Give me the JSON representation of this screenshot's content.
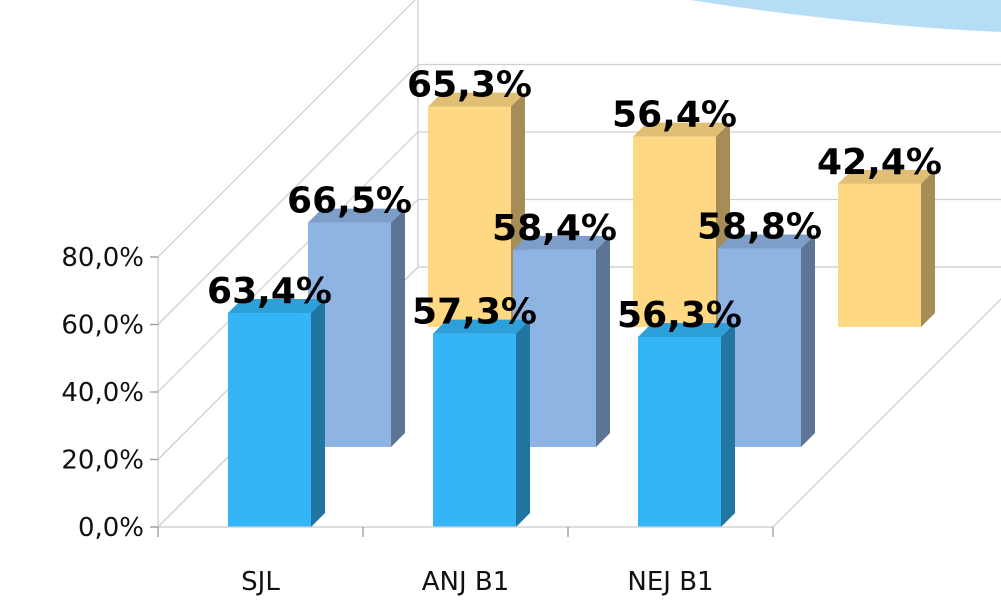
{
  "chart_data": {
    "type": "bar",
    "variant": "3d-clustered-deep",
    "categories": [
      "SJL",
      "ANJ B1",
      "NEJ B1"
    ],
    "series": [
      {
        "values": [
          63.4,
          57.3,
          56.3
        ],
        "color": "#33b5f7"
      },
      {
        "values": [
          null,
          null,
          null
        ],
        "color": "#ffc000"
      },
      {
        "values": [
          66.5,
          58.4,
          58.8
        ],
        "color": "#8eb4e3"
      },
      {
        "values": [
          null,
          null,
          null
        ],
        "color": "#9de0b5"
      },
      {
        "values": [
          null,
          null,
          null
        ],
        "color": "#cfe8fb"
      },
      {
        "values": [
          65.3,
          56.4,
          42.4
        ],
        "color": "#ffd884"
      }
    ],
    "data_labels": [
      [
        "63,4%",
        "57,3%",
        "56,3%"
      ],
      [
        null,
        null,
        null
      ],
      [
        "66,5%",
        "58,4%",
        "58,8%"
      ],
      [
        null,
        null,
        null
      ],
      [
        null,
        null,
        null
      ],
      [
        "65,3%",
        "56,4%",
        "42,4%"
      ]
    ],
    "yticks": [
      "0,0%",
      "20,0%",
      "40,0%",
      "60,0%",
      "80,0%"
    ],
    "ylim": [
      0,
      80
    ],
    "grid": true,
    "legend": "none",
    "decor_color": "#a8d8f5"
  }
}
